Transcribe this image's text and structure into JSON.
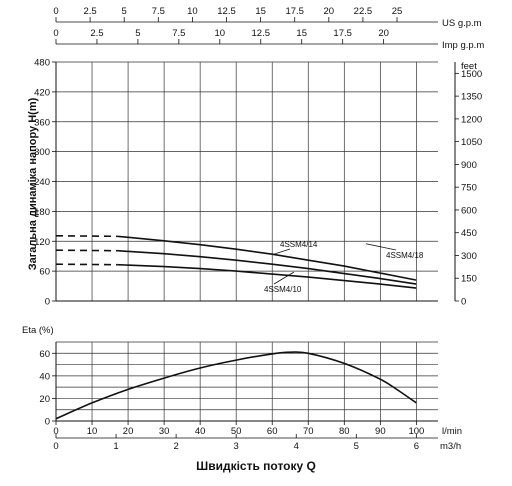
{
  "chart_data": [
    {
      "type": "line",
      "name": "head-curves",
      "ylabel": "Загальна динаміка напору H(m)",
      "ylim": [
        0,
        480
      ],
      "yticks": [
        0,
        60,
        120,
        180,
        240,
        300,
        360,
        420,
        480
      ],
      "y2label": "feet",
      "y2ticks": [
        0,
        150,
        300,
        450,
        600,
        750,
        900,
        1050,
        1200,
        1350,
        1500
      ],
      "xlim": [
        0,
        106
      ],
      "top_axes": [
        {
          "label": "US g.p.m",
          "ticks": [
            0,
            2.5,
            5,
            7.5,
            10,
            12.5,
            15,
            17.5,
            20,
            22.5,
            25
          ],
          "units_per_lpm": 0.2642
        },
        {
          "label": "Imp g.p.m",
          "ticks": [
            0,
            2.5,
            5,
            7.5,
            10,
            12.5,
            15,
            17.5,
            20
          ],
          "units_per_lpm": 0.22
        }
      ],
      "grid": true,
      "series": [
        {
          "name": "4SSM4/18",
          "dashed_until": 17,
          "x": [
            0,
            17,
            30,
            40,
            50,
            60,
            70,
            80,
            90,
            100
          ],
          "y": [
            131,
            130,
            121,
            113,
            104,
            94,
            82,
            70,
            56,
            42
          ]
        },
        {
          "name": "4SSM4/14",
          "dashed_until": 17,
          "x": [
            0,
            17,
            30,
            40,
            50,
            60,
            70,
            80,
            90,
            100
          ],
          "y": [
            102,
            101,
            95,
            89,
            82,
            74,
            65,
            55,
            45,
            34
          ]
        },
        {
          "name": "4SSM4/10",
          "dashed_until": 17,
          "x": [
            0,
            17,
            30,
            40,
            50,
            60,
            70,
            80,
            90,
            100
          ],
          "y": [
            74,
            73,
            69,
            65,
            60,
            54,
            48,
            41,
            34,
            26
          ]
        }
      ]
    },
    {
      "type": "line",
      "name": "efficiency-curve",
      "ylabel": "Eta (%)",
      "ylim": [
        0,
        70
      ],
      "yticks": [
        0,
        20,
        40,
        60
      ],
      "xlim": [
        0,
        106
      ],
      "grid": true,
      "series": [
        {
          "x": [
            0,
            10,
            20,
            30,
            40,
            50,
            60,
            65,
            70,
            80,
            90,
            95,
            100
          ],
          "y": [
            2,
            16,
            28,
            38,
            47,
            54,
            59.5,
            61,
            60,
            51,
            37,
            27,
            16
          ]
        }
      ]
    }
  ],
  "x_axes": {
    "lpm": {
      "label": "l/min",
      "ticks": [
        0,
        10,
        20,
        30,
        40,
        50,
        60,
        70,
        80,
        90,
        100
      ]
    },
    "m3h": {
      "label": "m3/h",
      "ticks": [
        0,
        1,
        2,
        3,
        4,
        5,
        6
      ]
    }
  },
  "x_title": "Швидкість потоку Q",
  "colors": {
    "line": "#111111",
    "grid": "#333333",
    "background": "#ffffff"
  }
}
